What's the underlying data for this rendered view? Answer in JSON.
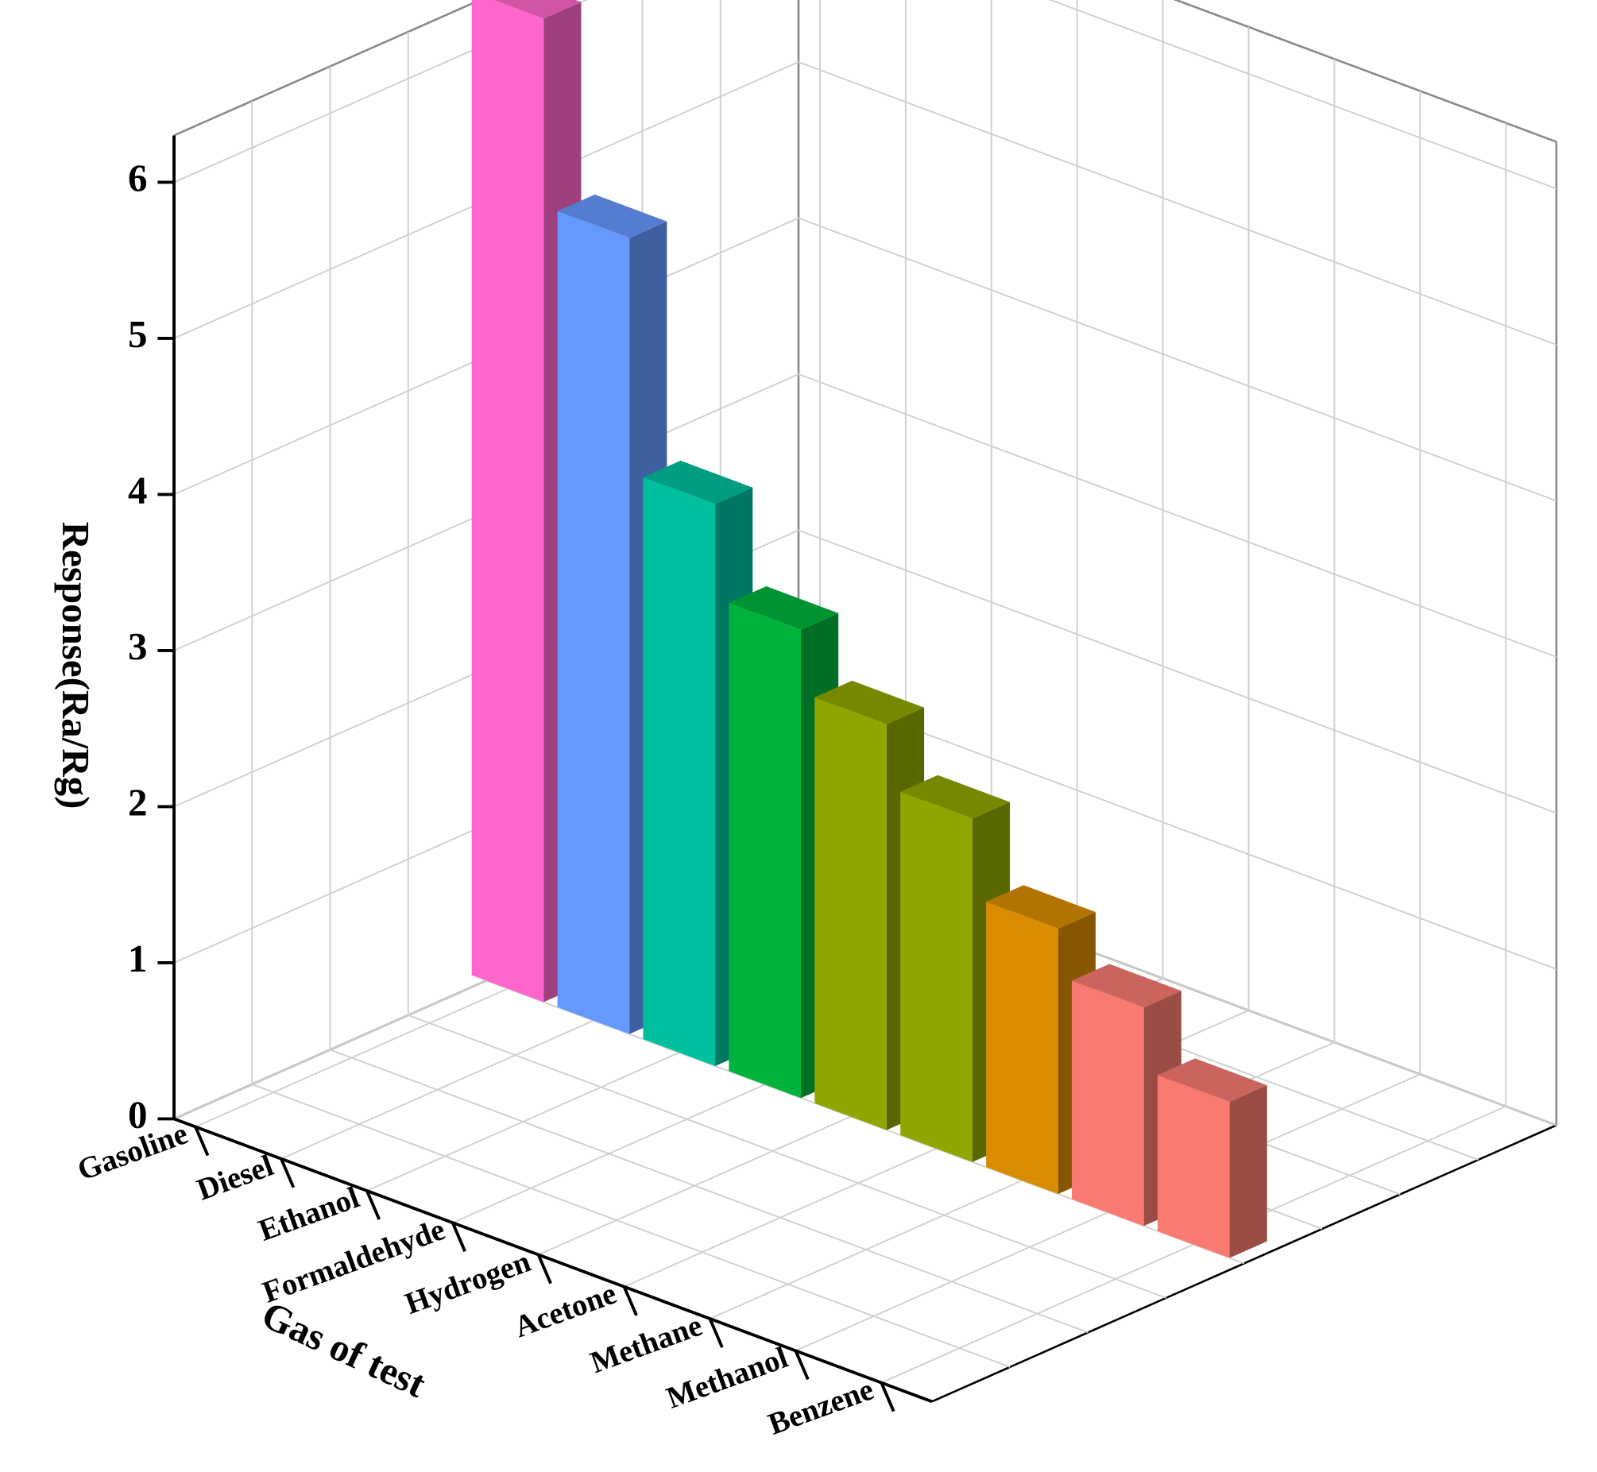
{
  "chart_data": {
    "type": "bar3d",
    "categories": [
      "Gasoline",
      "Diesel",
      "Ethanol",
      "Formaldehyde",
      "Hydrogen",
      "Acetone",
      "Methane",
      "Methanol",
      "Benzene"
    ],
    "values": [
      6.3,
      5.1,
      3.6,
      3.0,
      2.6,
      2.2,
      1.7,
      1.4,
      1.0
    ],
    "colors": [
      "#ff66cc",
      "#6699ff",
      "#00bf9f",
      "#00b33c",
      "#8fa600",
      "#8fa600",
      "#d98c00",
      "#f87a70",
      "#f87a70"
    ],
    "x_label": "Gas of test",
    "y_label": "Response(Ra/Rg)",
    "ylim": [
      0,
      6.3
    ],
    "yticks": [
      0,
      1,
      2,
      3,
      4,
      5,
      6
    ],
    "grid": true
  }
}
